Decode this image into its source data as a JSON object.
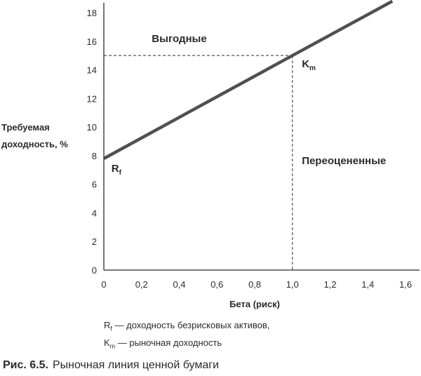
{
  "chart_data": {
    "type": "line",
    "ylabel_line1": "Требуемая",
    "ylabel_line2": "доходность, %",
    "xlabel": "Бета (риск)",
    "xlim": [
      0,
      1.6
    ],
    "ylim": [
      0,
      18
    ],
    "x_ticks": [
      "0",
      "0,2",
      "0,4",
      "0,6",
      "0,8",
      "1,0",
      "1,2",
      "1,4",
      "1,6"
    ],
    "y_ticks": [
      "0",
      "2",
      "4",
      "6",
      "8",
      "10",
      "12",
      "14",
      "16",
      "18"
    ],
    "series": [
      {
        "x": [
          0,
          1.0,
          1.53
        ],
        "y": [
          7.8,
          15,
          18.8
        ]
      }
    ],
    "reference_point": {
      "x": 1.0,
      "y": 15
    },
    "annotations": {
      "rf": {
        "main": "R",
        "sub": "f"
      },
      "km": {
        "main": "K",
        "sub": "m"
      },
      "above": "Выгодные",
      "below": "Переоцененные"
    },
    "grid": false
  },
  "legend": {
    "line1_main": "R",
    "line1_sub": "f",
    "line1_text": " — доходность безрисковых активов,",
    "line2_main": "K",
    "line2_sub": "m",
    "line2_text": " — рыночная доходность"
  },
  "caption": {
    "figure": "Рис. 6.5.",
    "text": "Рыночная линия ценной бумаги"
  },
  "colors": {
    "line": "#505050",
    "axis": "#2b2b2b",
    "text": "#2b2b2b"
  }
}
